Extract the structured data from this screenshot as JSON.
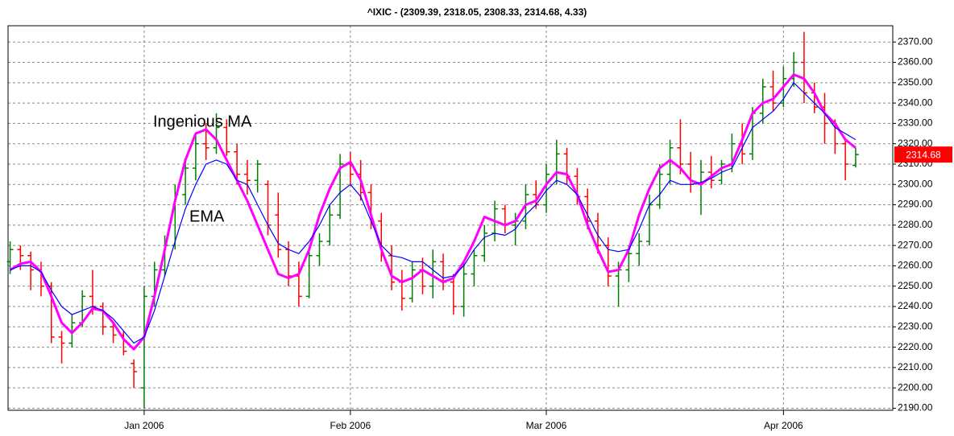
{
  "chart_data": {
    "type": "ohlc",
    "title": "^IXIC -  (2309.39, 2318.05, 2308.33, 2314.68, 4.33)",
    "open": [
      2262,
      2268,
      2265,
      2258,
      2250,
      2225,
      2222,
      2232,
      2245,
      2240,
      2230,
      2226,
      2212,
      2200,
      2245,
      2258,
      2270,
      2295,
      2308,
      2320,
      2318,
      2328,
      2316,
      2305,
      2302,
      2300,
      2285,
      2268,
      2255,
      2245,
      2265,
      2272,
      2285,
      2310,
      2305,
      2296,
      2282,
      2265,
      2252,
      2244,
      2258,
      2250,
      2262,
      2252,
      2240,
      2256,
      2265,
      2276,
      2288,
      2280,
      2282,
      2295,
      2290,
      2305,
      2315,
      2304,
      2294,
      2282,
      2270,
      2255,
      2258,
      2266,
      2272,
      2290,
      2305,
      2318,
      2310,
      2300,
      2306,
      2302,
      2310,
      2320,
      2315,
      2335,
      2348,
      2340,
      2352,
      2360,
      2345,
      2338,
      2330,
      2320,
      2309.39
    ],
    "high": [
      2272,
      2270,
      2267,
      2262,
      2252,
      2228,
      2236,
      2248,
      2258,
      2242,
      2232,
      2228,
      2214,
      2250,
      2262,
      2275,
      2300,
      2312,
      2325,
      2330,
      2335,
      2332,
      2320,
      2312,
      2312,
      2302,
      2296,
      2272,
      2262,
      2268,
      2276,
      2290,
      2315,
      2316,
      2312,
      2300,
      2286,
      2270,
      2258,
      2262,
      2264,
      2268,
      2266,
      2256,
      2262,
      2268,
      2280,
      2292,
      2290,
      2286,
      2300,
      2302,
      2310,
      2322,
      2318,
      2308,
      2298,
      2286,
      2274,
      2262,
      2270,
      2276,
      2295,
      2310,
      2322,
      2332,
      2316,
      2312,
      2314,
      2312,
      2325,
      2330,
      2338,
      2352,
      2356,
      2358,
      2365,
      2375,
      2350,
      2345,
      2332,
      2322,
      2318.05
    ],
    "low": [
      2256,
      2258,
      2248,
      2245,
      2222,
      2212,
      2220,
      2230,
      2236,
      2226,
      2222,
      2216,
      2200,
      2190,
      2240,
      2255,
      2268,
      2290,
      2302,
      2312,
      2315,
      2314,
      2300,
      2295,
      2296,
      2275,
      2264,
      2250,
      2240,
      2244,
      2260,
      2270,
      2283,
      2300,
      2292,
      2278,
      2262,
      2248,
      2238,
      2242,
      2246,
      2244,
      2248,
      2236,
      2235,
      2250,
      2262,
      2272,
      2276,
      2270,
      2278,
      2288,
      2286,
      2300,
      2300,
      2290,
      2278,
      2266,
      2250,
      2240,
      2252,
      2260,
      2270,
      2288,
      2300,
      2305,
      2296,
      2285,
      2298,
      2300,
      2306,
      2310,
      2312,
      2330,
      2336,
      2338,
      2348,
      2340,
      2335,
      2320,
      2315,
      2302,
      2308.33
    ],
    "close": [
      2268,
      2265,
      2258,
      2250,
      2225,
      2222,
      2232,
      2245,
      2240,
      2230,
      2226,
      2218,
      2208,
      2245,
      2258,
      2270,
      2295,
      2308,
      2320,
      2318,
      2328,
      2316,
      2305,
      2302,
      2310,
      2280,
      2268,
      2255,
      2245,
      2265,
      2272,
      2285,
      2310,
      2305,
      2296,
      2282,
      2265,
      2252,
      2244,
      2258,
      2250,
      2262,
      2252,
      2240,
      2256,
      2265,
      2276,
      2288,
      2280,
      2282,
      2295,
      2290,
      2305,
      2315,
      2304,
      2294,
      2282,
      2270,
      2255,
      2258,
      2266,
      2272,
      2290,
      2305,
      2318,
      2310,
      2300,
      2306,
      2302,
      2310,
      2320,
      2315,
      2335,
      2348,
      2340,
      2352,
      2360,
      2345,
      2338,
      2330,
      2320,
      2310,
      2314.68
    ],
    "up_color": "#008000",
    "down_color": "#ff0000",
    "series": [
      {
        "name": "Ingenious MA",
        "color": "#ff00ff",
        "values": [
          2258,
          2261,
          2262,
          2257,
          2245,
          2232,
          2227,
          2232,
          2239,
          2238,
          2232,
          2224,
          2219,
          2225,
          2245,
          2268,
          2292,
          2312,
          2325,
          2327,
          2322,
          2312,
          2302,
          2292,
          2280,
          2268,
          2256,
          2254,
          2256,
          2268,
          2285,
          2298,
          2308,
          2311,
          2302,
          2285,
          2268,
          2255,
          2252,
          2254,
          2258,
          2255,
          2252,
          2254,
          2262,
          2272,
          2284,
          2282,
          2280,
          2282,
          2290,
          2292,
          2300,
          2306,
          2305,
          2295,
          2280,
          2268,
          2257,
          2258,
          2268,
          2285,
          2298,
          2308,
          2312,
          2308,
          2302,
          2300,
          2304,
          2308,
          2310,
          2322,
          2335,
          2340,
          2342,
          2348,
          2354,
          2352,
          2345,
          2335,
          2330,
          2322,
          2318
        ]
      },
      {
        "name": "EMA",
        "color": "#0000ff",
        "values": [
          2258,
          2260,
          2260,
          2257,
          2248,
          2240,
          2236,
          2238,
          2240,
          2238,
          2234,
          2228,
          2222,
          2225,
          2238,
          2255,
          2272,
          2288,
          2300,
          2310,
          2312,
          2310,
          2302,
          2300,
          2290,
          2280,
          2271,
          2268,
          2266,
          2272,
          2280,
          2290,
          2296,
          2300,
          2294,
          2282,
          2270,
          2265,
          2264,
          2262,
          2262,
          2258,
          2254,
          2255,
          2260,
          2268,
          2274,
          2276,
          2275,
          2278,
          2285,
          2290,
          2297,
          2302,
          2300,
          2295,
          2285,
          2275,
          2268,
          2267,
          2268,
          2278,
          2290,
          2295,
          2302,
          2300,
          2300,
          2301,
          2303,
          2306,
          2308,
          2318,
          2328,
          2332,
          2336,
          2342,
          2350,
          2345,
          2340,
          2335,
          2328,
          2325,
          2322
        ]
      }
    ],
    "price_marker": {
      "value": 2314.68,
      "color": "#ff0000"
    },
    "xlim": [
      -0.2,
      85.6
    ],
    "xticks": [
      {
        "value": 13,
        "label": "Jan 2006"
      },
      {
        "value": 33,
        "label": "Feb 2006"
      },
      {
        "value": 52,
        "label": "Mar 2006"
      },
      {
        "value": 75,
        "label": "Apr 2006"
      }
    ],
    "ylim": [
      2189,
      2378
    ],
    "yticks": [
      {
        "value": 2190,
        "label": "2190.00"
      },
      {
        "value": 2200,
        "label": "2200.00"
      },
      {
        "value": 2210,
        "label": "2210.00"
      },
      {
        "value": 2220,
        "label": "2220.00"
      },
      {
        "value": 2230,
        "label": "2230.00"
      },
      {
        "value": 2240,
        "label": "2240.00"
      },
      {
        "value": 2250,
        "label": "2250.00"
      },
      {
        "value": 2260,
        "label": "2260.00"
      },
      {
        "value": 2270,
        "label": "2270.00"
      },
      {
        "value": 2280,
        "label": "2280.00"
      },
      {
        "value": 2290,
        "label": "2290.00"
      },
      {
        "value": 2300,
        "label": "2300.00"
      },
      {
        "value": 2310,
        "label": "2310.00"
      },
      {
        "value": 2320,
        "label": "2320.00"
      },
      {
        "value": 2330,
        "label": "2330.00"
      },
      {
        "value": 2340,
        "label": "2340.00"
      },
      {
        "value": 2350,
        "label": "2350.00"
      },
      {
        "value": 2360,
        "label": "2360.00"
      },
      {
        "value": 2370,
        "label": "2370.00"
      }
    ],
    "grid": true
  }
}
